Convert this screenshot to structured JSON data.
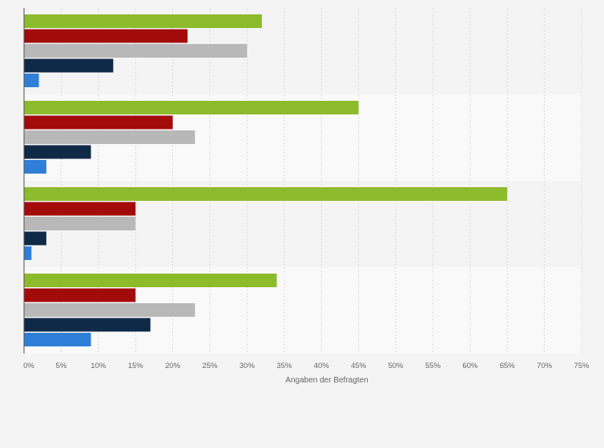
{
  "chart_data": {
    "type": "bar",
    "orientation": "horizontal",
    "title": "",
    "xlabel": "Angaben der Befragten",
    "ylabel": "",
    "xlim": [
      0,
      75
    ],
    "x_ticks": [
      0,
      5,
      10,
      15,
      20,
      25,
      30,
      35,
      40,
      45,
      50,
      55,
      60,
      65,
      70,
      75
    ],
    "x_tick_labels": [
      "0%",
      "5%",
      "10%",
      "15%",
      "20%",
      "25%",
      "30%",
      "35%",
      "40%",
      "45%",
      "50%",
      "55%",
      "60%",
      "65%",
      "70%",
      "75%"
    ],
    "grid": true,
    "legend": "none",
    "categories": [
      "",
      "",
      "",
      ""
    ],
    "series": [
      {
        "name": "",
        "color": "#8cbb2b",
        "values": [
          32,
          45,
          65,
          34
        ]
      },
      {
        "name": "",
        "color": "#a30b0b",
        "values": [
          22,
          20,
          15,
          15
        ]
      },
      {
        "name": "",
        "color": "#b8b8b8",
        "values": [
          30,
          23,
          15,
          23
        ]
      },
      {
        "name": "",
        "color": "#0e2a47",
        "values": [
          12,
          9,
          3,
          17
        ]
      },
      {
        "name": "",
        "color": "#2f7ed8",
        "values": [
          2,
          3,
          1,
          9
        ]
      }
    ]
  },
  "colors": {
    "page_background": "#f4f4f4",
    "band_dark": "#f4f4f4",
    "band_light": "#f9f9f9",
    "grid": "#dcdcdc",
    "axis": "#555555",
    "text": "#666666"
  }
}
